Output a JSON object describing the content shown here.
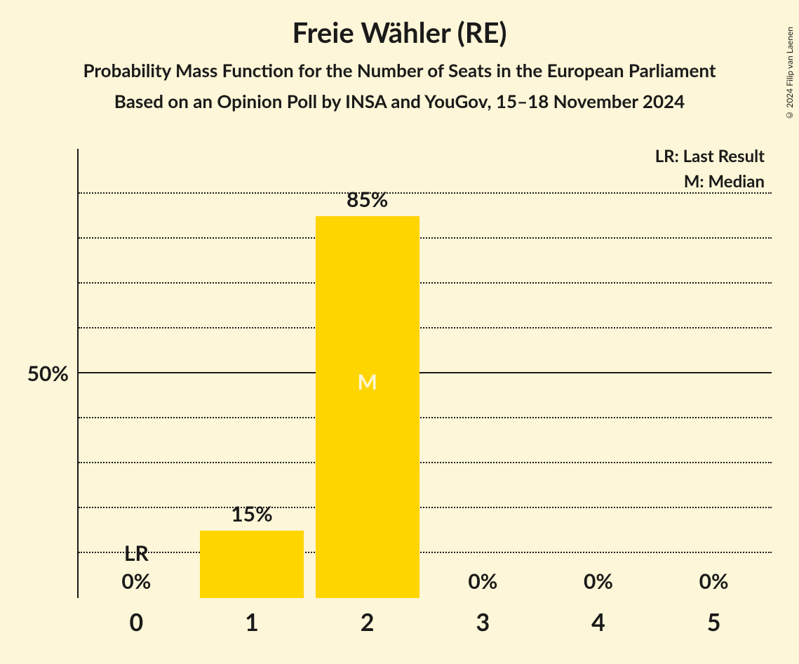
{
  "title": "Freie Wähler (RE)",
  "subtitle1": "Probability Mass Function for the Number of Seats in the European Parliament",
  "subtitle2": "Based on an Opinion Poll by INSA and YouGov, 15–18 November 2024",
  "copyright": "© 2024 Filip van Laenen",
  "legend": {
    "lr": "LR: Last Result",
    "m": "M: Median"
  },
  "chart": {
    "type": "bar",
    "background_color": "#fdf6d8",
    "bar_color": "#ffd500",
    "text_color": "#1a1a1a",
    "grid_color": "#1a1a1a",
    "ylim_max": 100,
    "y_major_tick": 50,
    "y_minor_step": 10,
    "y_tick_label": "50%",
    "bar_width_ratio": 0.9,
    "categories": [
      "0",
      "1",
      "2",
      "3",
      "4",
      "5"
    ],
    "values": [
      0,
      15,
      85,
      0,
      0,
      0
    ],
    "value_labels": [
      "0%",
      "15%",
      "85%",
      "0%",
      "0%",
      "0%"
    ],
    "lr_index": 0,
    "lr_marker": "LR",
    "median_index": 2,
    "median_marker": "M",
    "title_fontsize": 40,
    "subtitle_fontsize": 26,
    "axis_label_fontsize": 34,
    "value_label_fontsize": 30,
    "legend_fontsize": 24
  }
}
